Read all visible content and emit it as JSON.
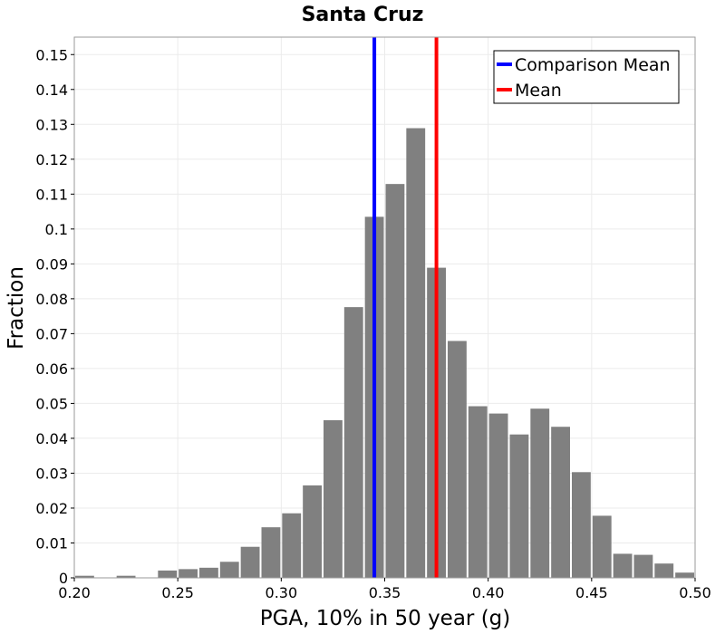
{
  "chart_data": {
    "type": "bar",
    "title": "Santa Cruz",
    "xlabel": "PGA, 10% in 50 year (g)",
    "ylabel": "Fraction",
    "xlim": [
      0.2,
      0.5
    ],
    "ylim": [
      0,
      0.155
    ],
    "grid": true,
    "legend_position": "top-right",
    "bin_width": 0.01,
    "x_ticks": [
      {
        "value": 0.2,
        "label": "0.20"
      },
      {
        "value": 0.25,
        "label": "0.25"
      },
      {
        "value": 0.3,
        "label": "0.30"
      },
      {
        "value": 0.35,
        "label": "0.35"
      },
      {
        "value": 0.4,
        "label": "0.40"
      },
      {
        "value": 0.45,
        "label": "0.45"
      },
      {
        "value": 0.5,
        "label": "0.50"
      }
    ],
    "y_ticks": [
      {
        "value": 0,
        "label": "0"
      },
      {
        "value": 0.01,
        "label": "0.01"
      },
      {
        "value": 0.02,
        "label": "0.02"
      },
      {
        "value": 0.03,
        "label": "0.03"
      },
      {
        "value": 0.04,
        "label": "0.04"
      },
      {
        "value": 0.05,
        "label": "0.05"
      },
      {
        "value": 0.06,
        "label": "0.06"
      },
      {
        "value": 0.07,
        "label": "0.07"
      },
      {
        "value": 0.08,
        "label": "0.08"
      },
      {
        "value": 0.09,
        "label": "0.09"
      },
      {
        "value": 0.1,
        "label": "0.1"
      },
      {
        "value": 0.11,
        "label": "0.11"
      },
      {
        "value": 0.12,
        "label": "0.12"
      },
      {
        "value": 0.13,
        "label": "0.13"
      },
      {
        "value": 0.14,
        "label": "0.14"
      },
      {
        "value": 0.15,
        "label": "0.15"
      }
    ],
    "bars": [
      {
        "x": 0.2,
        "value": 0.0006
      },
      {
        "x": 0.21,
        "value": 0.0001
      },
      {
        "x": 0.22,
        "value": 0.0006
      },
      {
        "x": 0.23,
        "value": 0.0001
      },
      {
        "x": 0.24,
        "value": 0.0021
      },
      {
        "x": 0.25,
        "value": 0.0025
      },
      {
        "x": 0.26,
        "value": 0.0029
      },
      {
        "x": 0.27,
        "value": 0.0046
      },
      {
        "x": 0.28,
        "value": 0.0089
      },
      {
        "x": 0.29,
        "value": 0.0145
      },
      {
        "x": 0.3,
        "value": 0.0185
      },
      {
        "x": 0.31,
        "value": 0.0265
      },
      {
        "x": 0.32,
        "value": 0.0452
      },
      {
        "x": 0.33,
        "value": 0.0776
      },
      {
        "x": 0.34,
        "value": 0.1035
      },
      {
        "x": 0.35,
        "value": 0.1129
      },
      {
        "x": 0.36,
        "value": 0.1289
      },
      {
        "x": 0.37,
        "value": 0.0889
      },
      {
        "x": 0.38,
        "value": 0.0679
      },
      {
        "x": 0.39,
        "value": 0.0492
      },
      {
        "x": 0.4,
        "value": 0.0471
      },
      {
        "x": 0.41,
        "value": 0.0411
      },
      {
        "x": 0.42,
        "value": 0.0485
      },
      {
        "x": 0.43,
        "value": 0.0433
      },
      {
        "x": 0.44,
        "value": 0.0303
      },
      {
        "x": 0.45,
        "value": 0.0178
      },
      {
        "x": 0.46,
        "value": 0.0069
      },
      {
        "x": 0.47,
        "value": 0.0066
      },
      {
        "x": 0.48,
        "value": 0.0041
      },
      {
        "x": 0.49,
        "value": 0.0015
      }
    ],
    "bar_color": "#808080",
    "lines": [
      {
        "name": "Comparison Mean",
        "x": 0.345,
        "color": "#0000ff"
      },
      {
        "name": "Mean",
        "x": 0.375,
        "color": "#ff0000"
      }
    ]
  }
}
